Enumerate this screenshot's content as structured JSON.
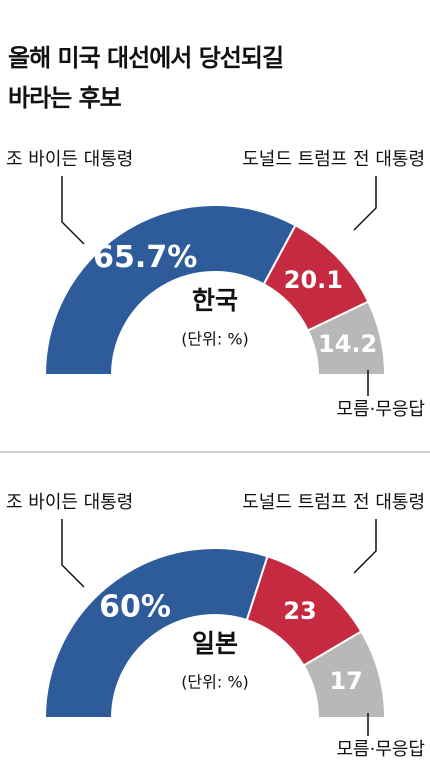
{
  "title": "올해 미국 대선에서 당선되길 바라는 후보",
  "chart_data": [
    {
      "type": "half-donut",
      "center_label": "한국",
      "unit": "(단위: %)",
      "categories": [
        "조 바이든 대통령",
        "도널드 트럼프 전 대통령",
        "모름·무응답"
      ],
      "values": [
        65.7,
        20.1,
        14.2
      ],
      "value_labels": [
        "65.7%",
        "20.1",
        "14.2"
      ],
      "colors": [
        "#2e5c9b",
        "#c62a40",
        "#b8b8b8"
      ]
    },
    {
      "type": "half-donut",
      "center_label": "일본",
      "unit": "(단위: %)",
      "categories": [
        "조 바이든 대통령",
        "도널드 트럼프 전 대통령",
        "모름·무응답"
      ],
      "values": [
        60,
        23,
        17
      ],
      "value_labels": [
        "60%",
        "23",
        "17"
      ],
      "colors": [
        "#2e5c9b",
        "#c62a40",
        "#b8b8b8"
      ]
    }
  ]
}
